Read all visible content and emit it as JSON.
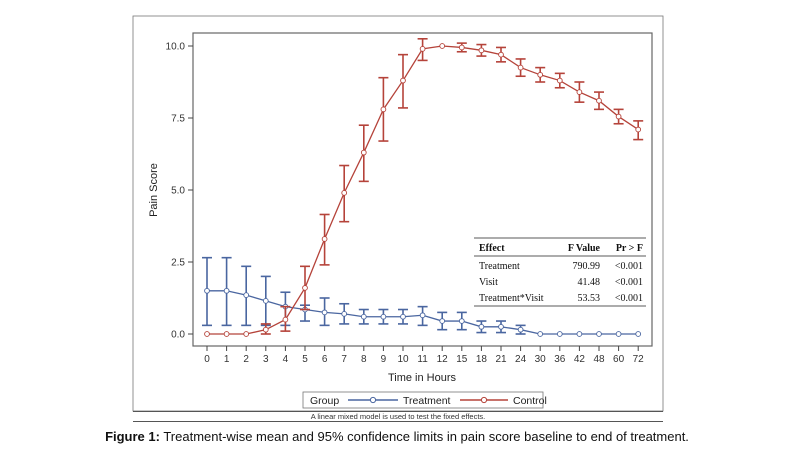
{
  "chart_data": {
    "type": "line",
    "xlabel": "Time in Hours",
    "ylabel": "Pain Score",
    "ylim": [
      0,
      10
    ],
    "y_ticks": [
      "0.0",
      "2.5",
      "5.0",
      "7.5",
      "10.0"
    ],
    "categories": [
      "0",
      "1",
      "2",
      "3",
      "4",
      "5",
      "6",
      "7",
      "8",
      "9",
      "10",
      "11",
      "12",
      "15",
      "18",
      "21",
      "24",
      "30",
      "36",
      "42",
      "48",
      "60",
      "72"
    ],
    "series": [
      {
        "name": "Treatment",
        "color": "#4a66a0",
        "values": [
          1.5,
          1.5,
          1.35,
          1.15,
          0.95,
          0.85,
          0.75,
          0.7,
          0.6,
          0.6,
          0.6,
          0.65,
          0.45,
          0.45,
          0.25,
          0.25,
          0.15,
          0,
          0,
          0,
          0,
          0,
          0
        ],
        "lower": [
          0.3,
          0.3,
          0.3,
          0.3,
          0.3,
          0.45,
          0.3,
          0.35,
          0.35,
          0.35,
          0.35,
          0.3,
          0.15,
          0.15,
          0.05,
          0.05,
          0.0,
          0,
          0,
          0,
          0,
          0,
          0
        ],
        "upper": [
          2.65,
          2.65,
          2.35,
          2.0,
          1.45,
          1.0,
          1.25,
          1.05,
          0.85,
          0.85,
          0.85,
          0.95,
          0.75,
          0.75,
          0.45,
          0.45,
          0.3,
          0,
          0,
          0,
          0,
          0,
          0
        ]
      },
      {
        "name": "Control",
        "color": "#b5433a",
        "values": [
          0,
          0,
          0,
          0.15,
          0.5,
          1.6,
          3.3,
          4.9,
          6.3,
          7.8,
          8.8,
          9.9,
          10.0,
          9.95,
          9.85,
          9.7,
          9.25,
          9.0,
          8.8,
          8.4,
          8.1,
          7.55,
          7.1
        ],
        "lower": [
          0,
          0,
          0,
          0.0,
          0.1,
          0.85,
          2.4,
          3.9,
          5.3,
          6.7,
          7.85,
          9.5,
          10.0,
          9.8,
          9.65,
          9.45,
          8.95,
          8.75,
          8.55,
          8.05,
          7.8,
          7.3,
          6.75
        ],
        "upper": [
          0,
          0,
          0,
          0.35,
          0.95,
          2.35,
          4.15,
          5.85,
          7.25,
          8.9,
          9.7,
          10.25,
          10.0,
          10.1,
          10.05,
          9.95,
          9.55,
          9.25,
          9.05,
          8.75,
          8.4,
          7.8,
          7.4
        ]
      }
    ],
    "legend": {
      "title": "Group",
      "position": "bottom"
    },
    "grid": false
  },
  "stats_table": {
    "headers": [
      "Effect",
      "F Value",
      "Pr > F"
    ],
    "rows": [
      [
        "Treatment",
        "790.99",
        "<0.001"
      ],
      [
        "Visit",
        "41.48",
        "<0.001"
      ],
      [
        "Treatment*Visit",
        "53.53",
        "<0.001"
      ]
    ]
  },
  "footnote": "A linear mixed model is used to test the fixed effects.",
  "caption": {
    "label": "Figure 1:",
    "text": " Treatment-wise mean and 95% confidence limits in pain score baseline to end of treatment."
  }
}
